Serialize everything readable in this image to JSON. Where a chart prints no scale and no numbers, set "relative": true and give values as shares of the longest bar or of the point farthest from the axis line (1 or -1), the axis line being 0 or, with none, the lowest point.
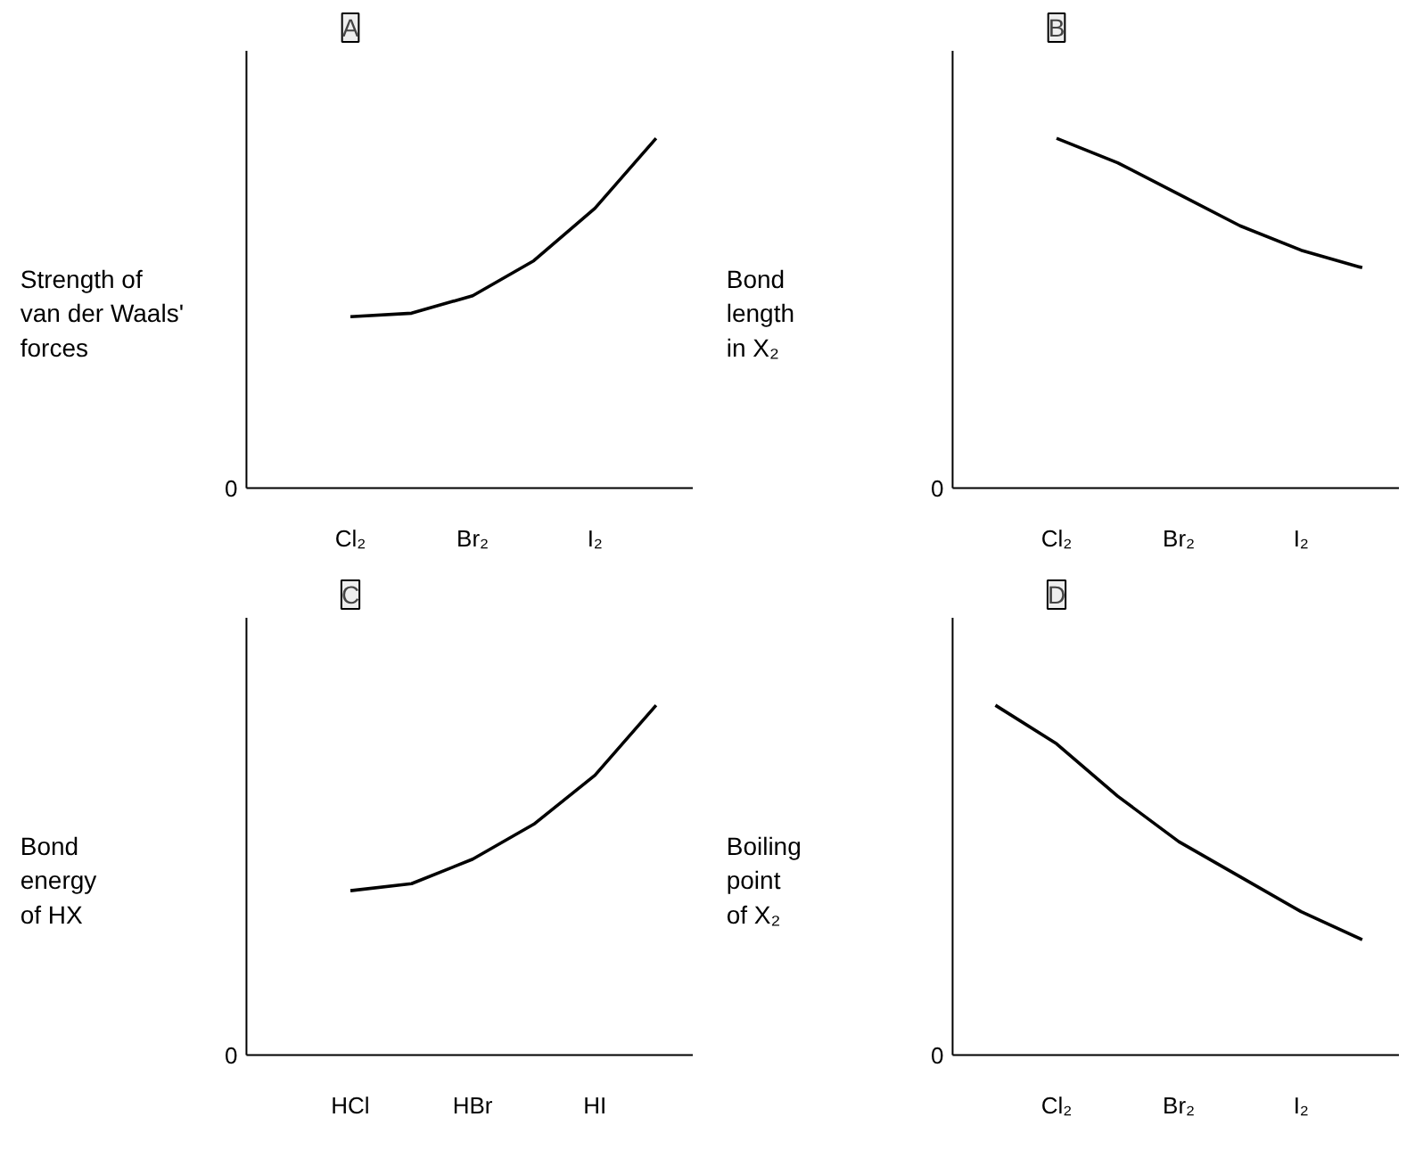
{
  "chart_data": [
    {
      "type": "line",
      "title": "A",
      "ylabel": "Strength of\nvan der Waals'\nforces",
      "relative": true,
      "grid": false,
      "categories": [
        null,
        "Cl₂",
        null,
        "Br₂",
        null,
        "I₂",
        null
      ],
      "annotations": [
        "0"
      ],
      "series": [
        {
          "color": "#000000",
          "values": [
            null,
            0.49,
            0.5,
            0.55,
            0.65,
            0.8,
            1.0
          ]
        }
      ]
    },
    {
      "type": "line",
      "title": "B",
      "ylabel": "Bond\nlength\nin X₂",
      "relative": true,
      "grid": false,
      "categories": [
        null,
        "Cl₂",
        null,
        "Br₂",
        null,
        "I₂",
        null
      ],
      "annotations": [
        "0"
      ],
      "series": [
        {
          "color": "#000000",
          "values": [
            null,
            1.0,
            0.93,
            0.84,
            0.75,
            0.68,
            0.63
          ]
        }
      ]
    },
    {
      "type": "line",
      "title": "C",
      "ylabel": "Bond\nenergy\nof HX",
      "relative": true,
      "grid": false,
      "categories": [
        null,
        "HCl",
        null,
        "HBr",
        null,
        "HI",
        null
      ],
      "annotations": [
        "0"
      ],
      "series": [
        {
          "color": "#000000",
          "values": [
            null,
            0.47,
            0.49,
            0.56,
            0.66,
            0.8,
            1.0
          ]
        }
      ]
    },
    {
      "type": "line",
      "title": "D",
      "ylabel": "Boiling\npoint\nof X₂",
      "relative": true,
      "grid": false,
      "categories": [
        null,
        "Cl₂",
        null,
        "Br₂",
        null,
        "I₂",
        null
      ],
      "annotations": [
        "0"
      ],
      "series": [
        {
          "color": "#000000",
          "values": [
            1.0,
            0.89,
            0.74,
            0.61,
            0.51,
            0.41,
            0.33
          ]
        }
      ]
    }
  ]
}
